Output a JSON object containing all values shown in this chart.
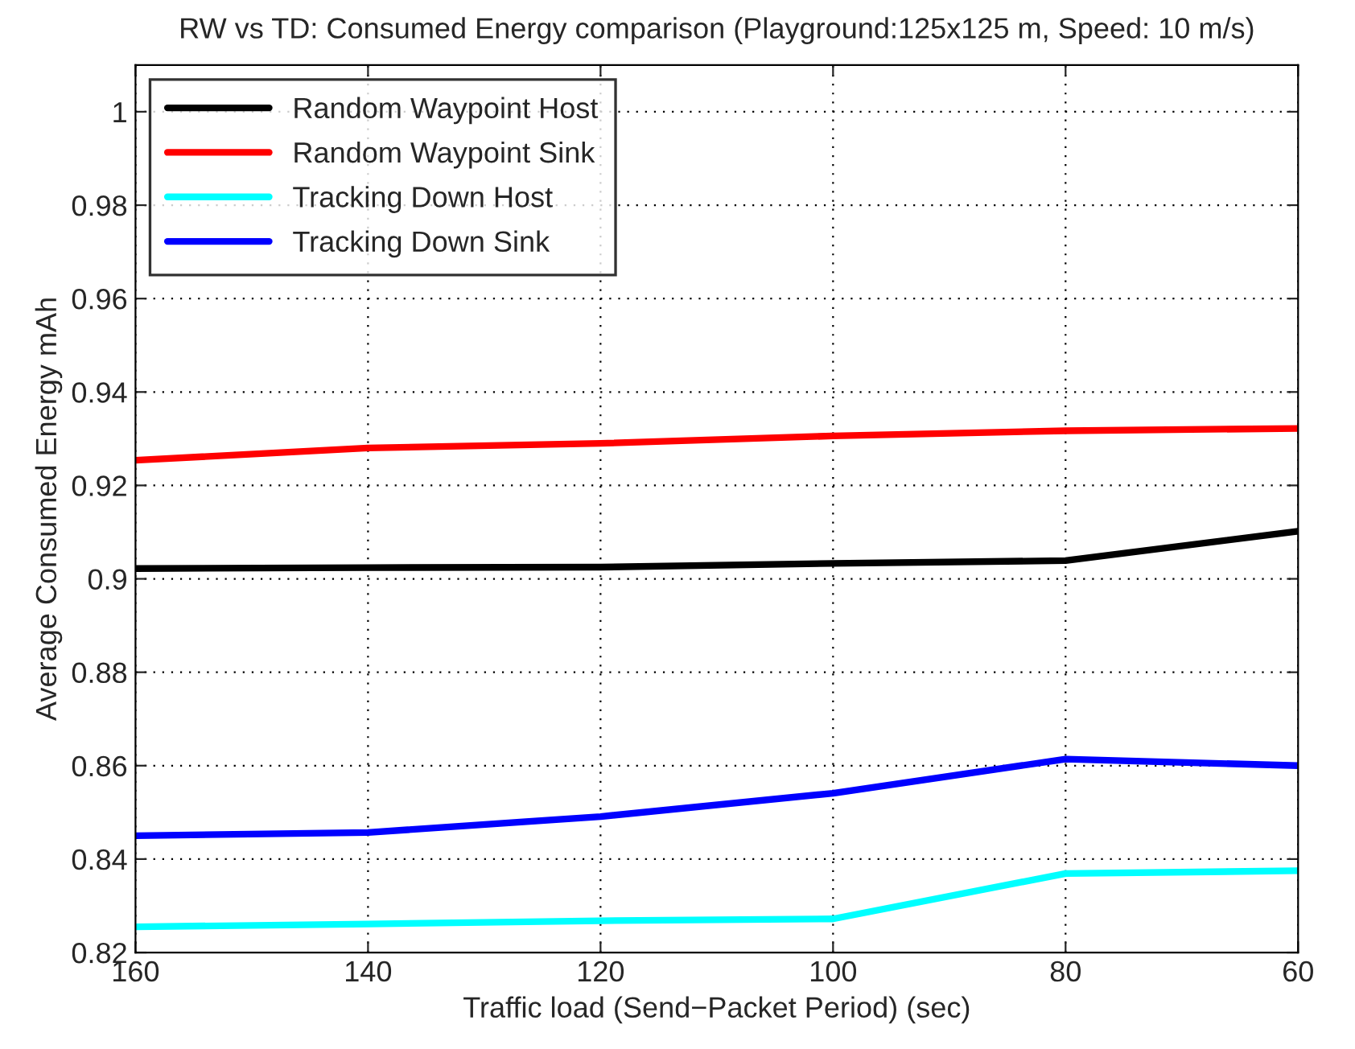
{
  "chart_data": {
    "type": "line",
    "title": "RW vs TD: Consumed Energy comparison (Playground:125x125 m, Speed: 10 m/s)",
    "xlabel": "Traffic load (Send−Packet Period) (sec)",
    "ylabel": "Average Consumed Energy mAh",
    "x": [
      160,
      140,
      120,
      100,
      80,
      60
    ],
    "series": [
      {
        "name": "Random Waypoint Host",
        "color": "#000000",
        "values": [
          0.9022,
          0.9024,
          0.9025,
          0.9033,
          0.9039,
          0.9102
        ]
      },
      {
        "name": "Random Waypoint Sink",
        "color": "#ff0000",
        "values": [
          0.9254,
          0.928,
          0.929,
          0.9306,
          0.9317,
          0.9322
        ]
      },
      {
        "name": "Tracking Down Host",
        "color": "#00ffff",
        "values": [
          0.8255,
          0.8261,
          0.8268,
          0.8272,
          0.8369,
          0.8375
        ]
      },
      {
        "name": "Tracking Down Sink",
        "color": "#0000ff",
        "values": [
          0.845,
          0.8457,
          0.8491,
          0.8541,
          0.8614,
          0.86
        ]
      }
    ],
    "xlim": [
      160,
      60
    ],
    "xticks": [
      160,
      140,
      120,
      100,
      80,
      60
    ],
    "ylim": [
      0.82,
      1.01
    ],
    "yticks": [
      0.82,
      0.84,
      0.86,
      0.88,
      0.9,
      0.92,
      0.94,
      0.96,
      0.98,
      1
    ],
    "grid": true,
    "legend": "top left",
    "marker": "none",
    "line_style": "solid"
  }
}
